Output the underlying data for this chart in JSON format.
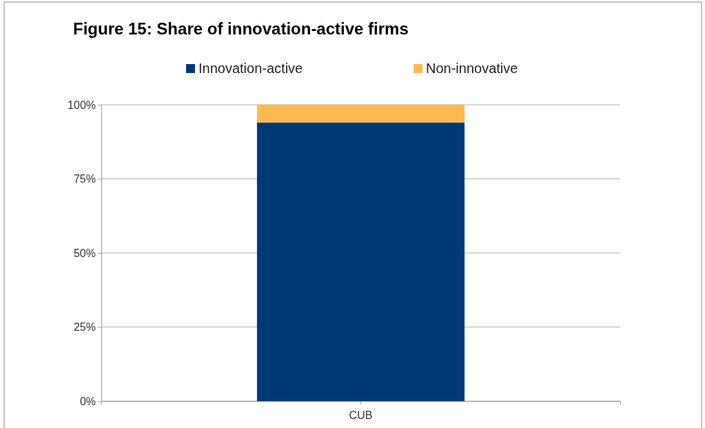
{
  "chart_data": {
    "type": "bar",
    "title": "Figure 15: Share of innovation-active firms",
    "categories": [
      "CUB"
    ],
    "stacked": true,
    "series": [
      {
        "name": "Innovation-active",
        "color": "#003876",
        "values": [
          94
        ]
      },
      {
        "name": "Non-innovative",
        "color": "#ffb951",
        "values": [
          6
        ]
      }
    ],
    "ylim": [
      0,
      100
    ],
    "yticks": [
      {
        "value": 0,
        "label": "0%"
      },
      {
        "value": 25,
        "label": "25%"
      },
      {
        "value": 50,
        "label": "50%"
      },
      {
        "value": 75,
        "label": "75%"
      },
      {
        "value": 100,
        "label": "100%"
      }
    ],
    "grid": "y",
    "legend": "top"
  }
}
